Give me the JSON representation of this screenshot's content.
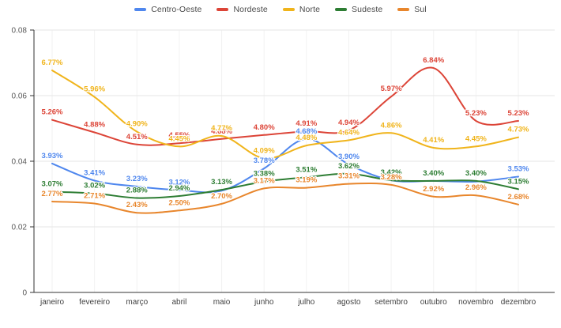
{
  "page": {
    "background": "#ffffff"
  },
  "chart_data": {
    "type": "line",
    "title": "",
    "xlabel": "",
    "ylabel": "",
    "curve": "smooth",
    "grid": true,
    "legend_position": "top",
    "axis_color": "#333333",
    "gridline_color": "#e6e6e6",
    "vertical_gridline_color": "#f2f2f2",
    "ylim_pct": [
      0,
      8
    ],
    "y_ticks": [
      {
        "label": "0.08",
        "value": 8
      },
      {
        "label": "0.06",
        "value": 6
      },
      {
        "label": "0.04",
        "value": 4
      },
      {
        "label": "0.02",
        "value": 2
      },
      {
        "label": "0",
        "value": 0
      }
    ],
    "x_categories": [
      "janeiro",
      "fevereiro",
      "março",
      "abril",
      "maio",
      "junho",
      "julho",
      "agosto",
      "setembro",
      "outubro",
      "novembro",
      "dezembro"
    ],
    "series": [
      {
        "name": "Centro-Oeste",
        "color": "#4f87ee",
        "values": [
          3.93,
          3.41,
          3.23,
          3.12,
          3.1,
          3.78,
          4.68,
          3.9,
          3.42,
          3.4,
          3.38,
          3.53
        ],
        "labels": [
          "3.93%",
          "3.41%",
          "3.23%",
          "3.12%",
          "",
          "3.78%",
          "4.68%",
          "3.90%",
          "3.42%",
          "3.40%",
          "",
          "3.53%"
        ]
      },
      {
        "name": "Nordeste",
        "color": "#dc4437",
        "values": [
          5.26,
          4.88,
          4.51,
          4.55,
          4.68,
          4.8,
          4.91,
          4.94,
          5.97,
          6.84,
          5.23,
          5.23
        ],
        "labels": [
          "5.26%",
          "4.88%",
          "4.51%",
          "4.55%",
          "4.68%",
          "4.80%",
          "4.91%",
          "4.94%",
          "5.97%",
          "6.84%",
          "5.23%",
          "5.23%"
        ]
      },
      {
        "name": "Norte",
        "color": "#f0b41b",
        "values": [
          6.77,
          5.96,
          4.9,
          4.45,
          4.77,
          4.09,
          4.48,
          4.64,
          4.86,
          4.41,
          4.45,
          4.73
        ],
        "labels": [
          "6.77%",
          "5.96%",
          "4.90%",
          "4.45%",
          "4.77%",
          "4.09%",
          "4.48%",
          "4.64%",
          "4.86%",
          "4.41%",
          "4.45%",
          "4.73%"
        ]
      },
      {
        "name": "Sudeste",
        "color": "#2d7d33",
        "values": [
          3.07,
          3.02,
          2.88,
          2.94,
          3.13,
          3.38,
          3.51,
          3.62,
          3.42,
          3.4,
          3.4,
          3.15
        ],
        "labels": [
          "3.07%",
          "3.02%",
          "2.88%",
          "2.94%",
          "3.13%",
          "3.38%",
          "3.51%",
          "3.62%",
          "3.42%",
          "3.40%",
          "3.40%",
          "3.15%"
        ]
      },
      {
        "name": "Sul",
        "color": "#e8862c",
        "values": [
          2.77,
          2.71,
          2.43,
          2.5,
          2.7,
          3.17,
          3.19,
          3.31,
          3.28,
          2.92,
          2.96,
          2.68
        ],
        "labels": [
          "2.77%",
          "2.71%",
          "2.43%",
          "2.50%",
          "2.70%",
          "3.17%",
          "3.19%",
          "3.31%",
          "3.28%",
          "2.92%",
          "2.96%",
          "2.68%"
        ]
      }
    ]
  }
}
